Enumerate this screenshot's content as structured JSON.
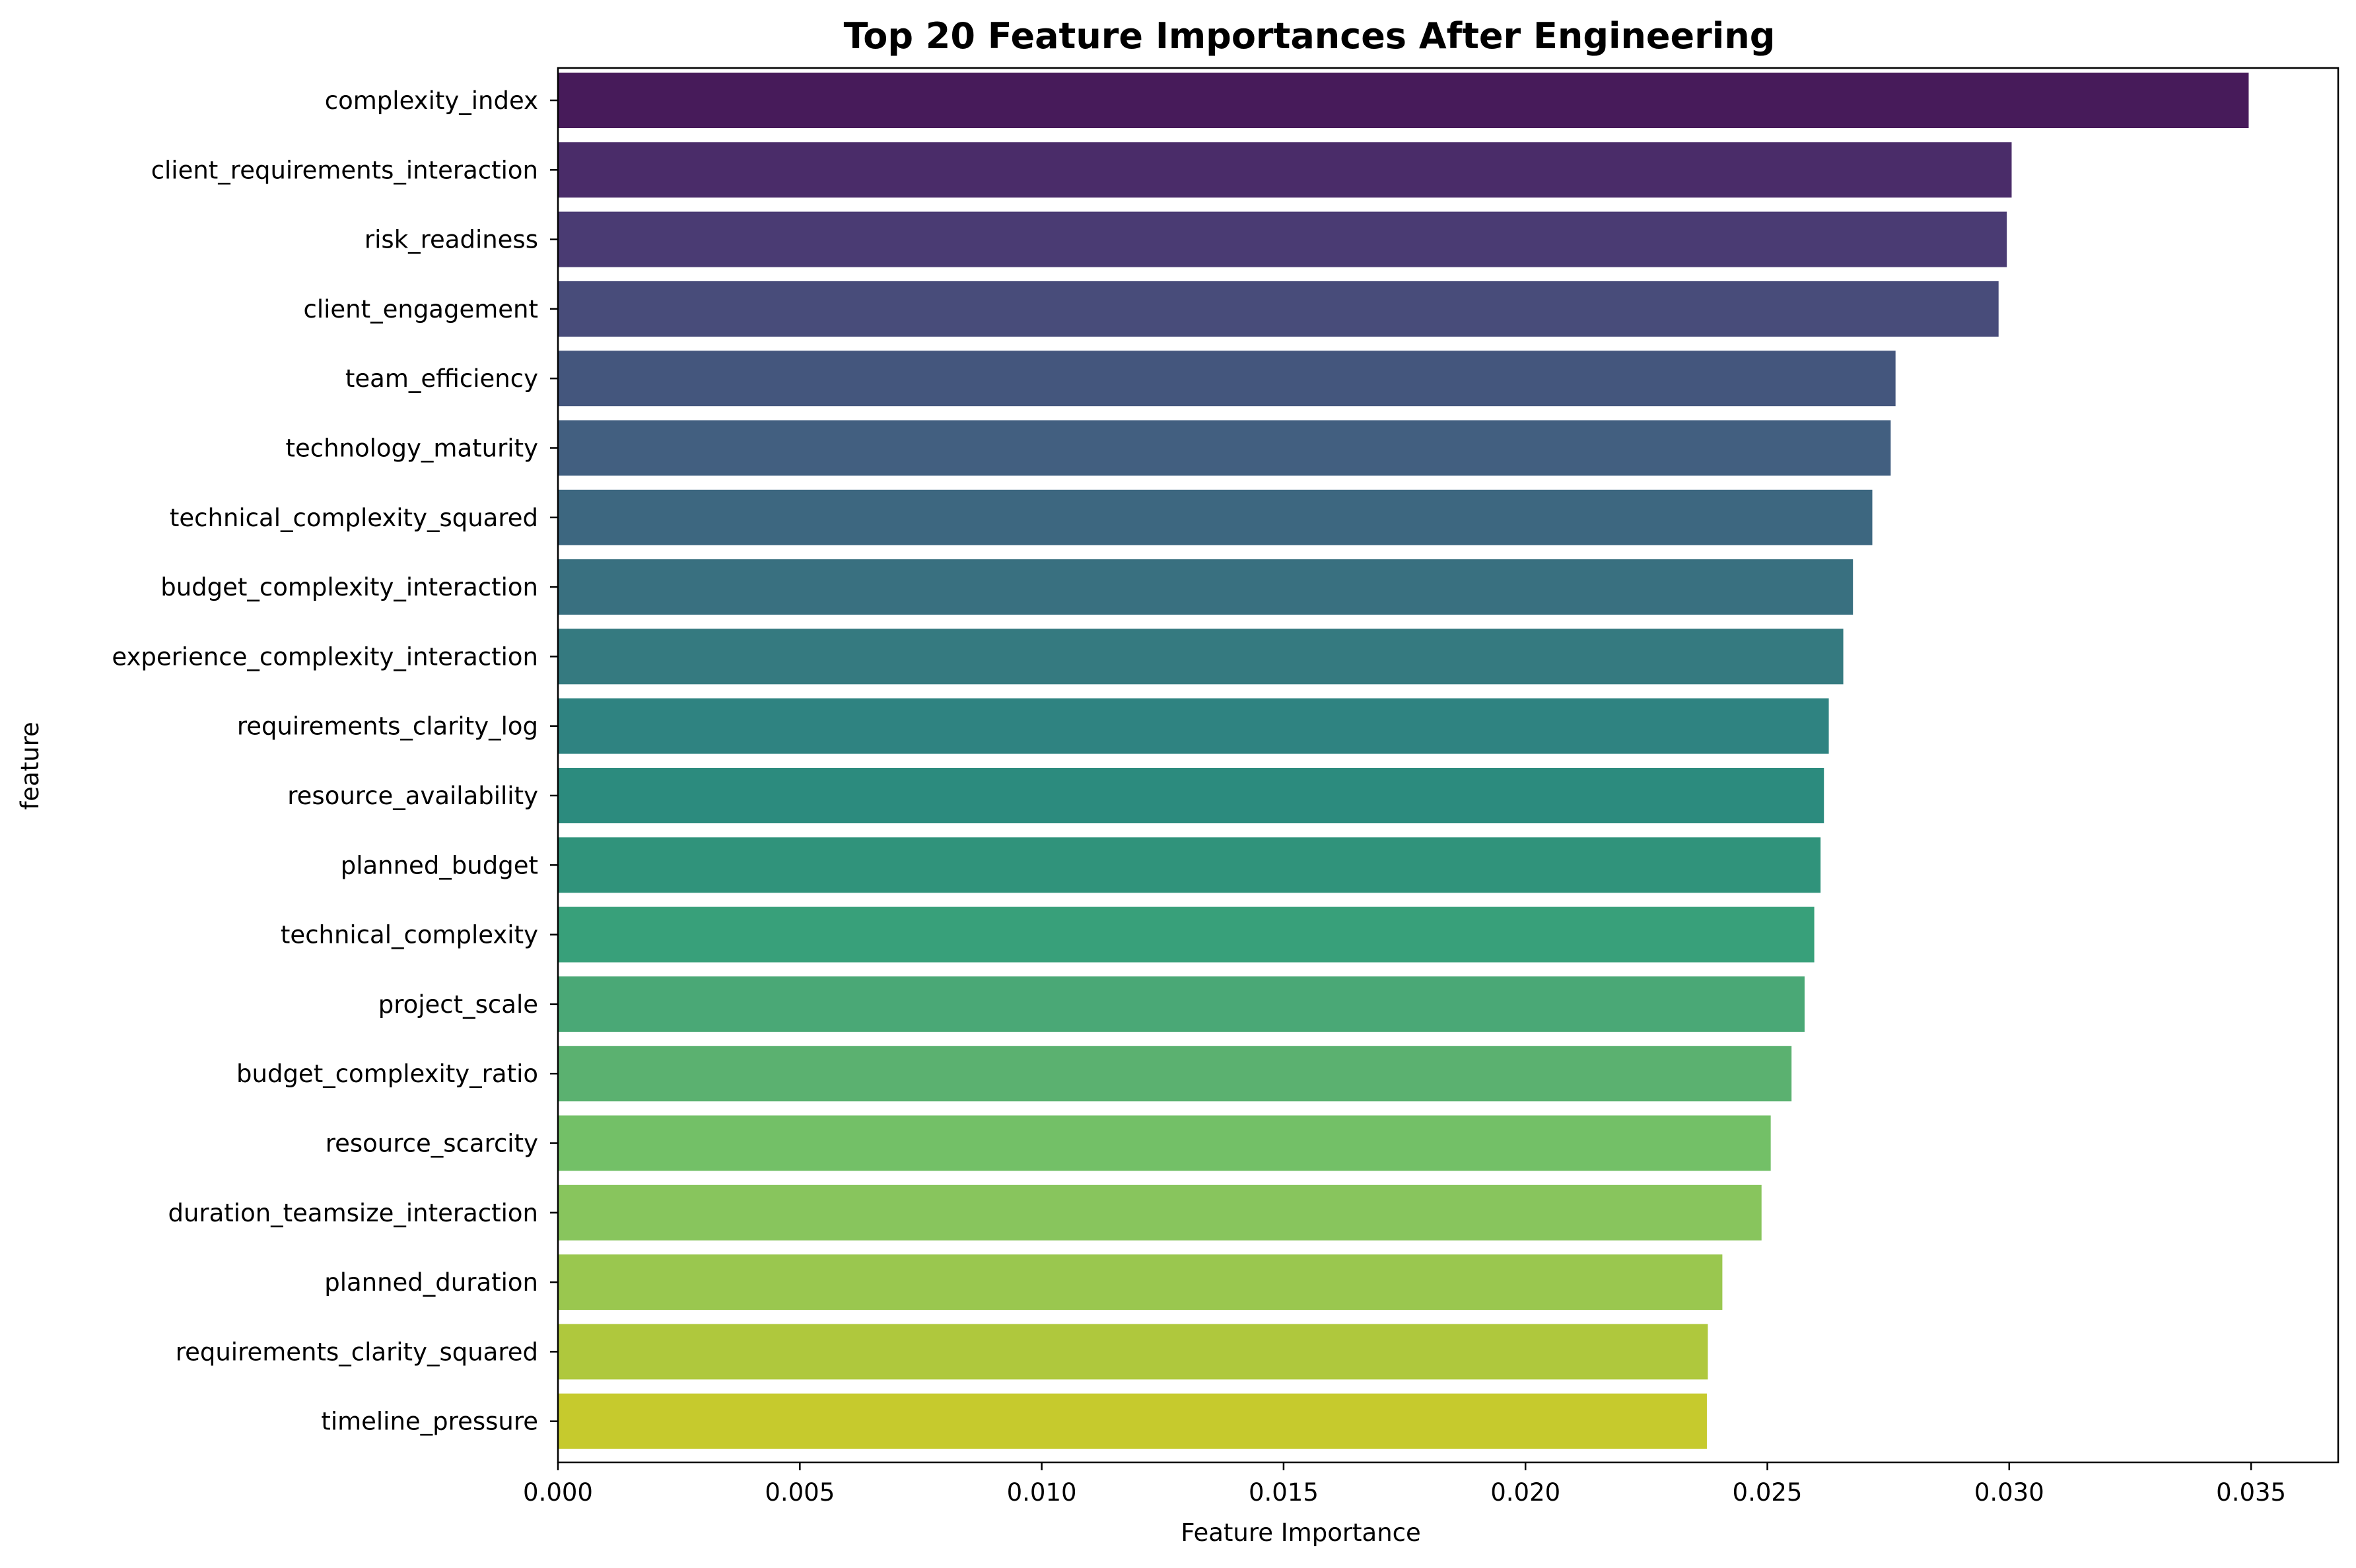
{
  "chart_data": {
    "type": "bar",
    "orientation": "horizontal",
    "title": "Top 20 Feature Importances After Engineering",
    "xlabel": "Feature Importance",
    "ylabel": "feature",
    "xlim": [
      0,
      0.0368
    ],
    "xticks": [
      "0.000",
      "0.005",
      "0.010",
      "0.015",
      "0.020",
      "0.025",
      "0.030",
      "0.035"
    ],
    "xtick_values": [
      0,
      0.005,
      0.01,
      0.015,
      0.02,
      0.025,
      0.03,
      0.035
    ],
    "grid": false,
    "legend": "none",
    "colormap": "viridis",
    "categories": [
      "complexity_index",
      "client_requirements_interaction",
      "risk_readiness",
      "client_engagement",
      "team_efficiency",
      "technology_maturity",
      "technical_complexity_squared",
      "budget_complexity_interaction",
      "experience_complexity_interaction",
      "requirements_clarity_log",
      "resource_availability",
      "planned_budget",
      "technical_complexity",
      "project_scale",
      "budget_complexity_ratio",
      "resource_scarcity",
      "duration_teamsize_interaction",
      "planned_duration",
      "requirements_clarity_squared",
      "timeline_pressure"
    ],
    "values": [
      0.03495,
      0.03005,
      0.02995,
      0.02978,
      0.02765,
      0.02755,
      0.02717,
      0.02677,
      0.02657,
      0.02627,
      0.02617,
      0.0261,
      0.02597,
      0.02577,
      0.0255,
      0.02507,
      0.02488,
      0.02407,
      0.02377,
      0.02375
    ],
    "colors": [
      "#471b5a",
      "#4a2c69",
      "#4a3b73",
      "#484c7a",
      "#44567d",
      "#425f80",
      "#3d6780",
      "#397080",
      "#357a80",
      "#2f8381",
      "#2c8b7e",
      "#30937b",
      "#38a07a",
      "#4aa876",
      "#5bb170",
      "#73c067",
      "#88c55d",
      "#9ac74f",
      "#afc83d",
      "#c6ca2d"
    ]
  }
}
